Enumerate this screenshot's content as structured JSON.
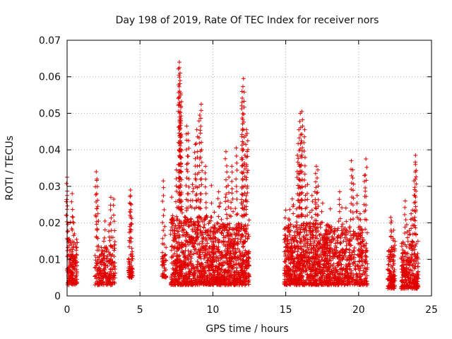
{
  "colors": {
    "points": "#e00000",
    "grid": "#a8a8a8",
    "axis": "#000000"
  },
  "chart_data": {
    "type": "scatter",
    "marker": "+",
    "title": "Day 198 of 2019, Rate Of TEC Index for receiver nors",
    "xlabel": "GPS time / hours",
    "ylabel": "ROTI / TECUs",
    "xlim": [
      0,
      25
    ],
    "ylim": [
      0,
      0.07
    ],
    "xticks": [
      0,
      5,
      10,
      15,
      20,
      25
    ],
    "xtick_labels": [
      "0",
      "5",
      "10",
      "15",
      "20",
      "25"
    ],
    "yticks": [
      0,
      0.01,
      0.02,
      0.03,
      0.04,
      0.05,
      0.06,
      0.07
    ],
    "ytick_labels": [
      "0",
      "0.01",
      "0.02",
      "0.03",
      "0.04",
      "0.05",
      "0.06",
      "0.07"
    ],
    "grid": true,
    "series": [
      {
        "name": "ROTI",
        "approximate": true,
        "clusters": [
          {
            "x0": 0.0,
            "x1": 0.7,
            "n": 160,
            "ymin": 0.003,
            "ymax": 0.016,
            "peaks": [
              [
                0.0,
                0.0325
              ],
              [
                0.0,
                0.0275
              ],
              [
                0.35,
                0.028
              ],
              [
                0.4,
                0.0215
              ],
              [
                0.5,
                0.017
              ],
              [
                0.1,
                0.0155
              ]
            ]
          },
          {
            "x0": 1.9,
            "x1": 3.3,
            "n": 220,
            "ymin": 0.003,
            "ymax": 0.014,
            "peaks": [
              [
                2.0,
                0.034
              ],
              [
                2.05,
                0.032
              ],
              [
                2.1,
                0.0245
              ],
              [
                2.6,
                0.0205
              ],
              [
                3.0,
                0.027
              ],
              [
                3.2,
                0.0265
              ],
              [
                2.9,
                0.0195
              ]
            ]
          },
          {
            "x0": 4.2,
            "x1": 4.5,
            "n": 60,
            "ymin": 0.005,
            "ymax": 0.016,
            "peaks": [
              [
                4.35,
                0.029
              ],
              [
                4.35,
                0.0275
              ],
              [
                4.4,
                0.025
              ],
              [
                4.3,
                0.019
              ]
            ]
          },
          {
            "x0": 6.5,
            "x1": 6.8,
            "n": 40,
            "ymin": 0.005,
            "ymax": 0.012,
            "peaks": [
              [
                6.6,
                0.0315
              ],
              [
                6.7,
                0.019
              ]
            ]
          },
          {
            "x0": 7.1,
            "x1": 10.0,
            "n": 750,
            "ymin": 0.003,
            "ymax": 0.022,
            "peaks": [
              [
                7.7,
                0.064
              ],
              [
                7.7,
                0.0625
              ],
              [
                7.75,
                0.061
              ],
              [
                7.8,
                0.0555
              ],
              [
                7.7,
                0.0545
              ],
              [
                7.75,
                0.0505
              ],
              [
                7.8,
                0.048
              ],
              [
                8.2,
                0.0465
              ],
              [
                8.3,
                0.0445
              ],
              [
                8.9,
                0.0455
              ],
              [
                9.2,
                0.0525
              ],
              [
                9.1,
                0.0495
              ],
              [
                9.5,
                0.0355
              ],
              [
                8.8,
                0.0415
              ],
              [
                7.5,
                0.0345
              ],
              [
                8.6,
                0.0305
              ],
              [
                9.0,
                0.0265
              ]
            ]
          },
          {
            "x0": 10.0,
            "x1": 12.5,
            "n": 650,
            "ymin": 0.003,
            "ymax": 0.02,
            "peaks": [
              [
                12.1,
                0.0595
              ],
              [
                12.0,
                0.056
              ],
              [
                12.0,
                0.053
              ],
              [
                12.3,
                0.0455
              ],
              [
                12.35,
                0.0445
              ],
              [
                11.6,
                0.0405
              ],
              [
                10.9,
                0.0395
              ],
              [
                11.3,
                0.0355
              ],
              [
                10.4,
                0.0285
              ],
              [
                11.1,
                0.0325
              ],
              [
                12.2,
                0.0385
              ]
            ]
          },
          {
            "x0": 14.9,
            "x1": 16.2,
            "n": 380,
            "ymin": 0.003,
            "ymax": 0.02,
            "peaks": [
              [
                15.0,
                0.0235
              ],
              [
                15.5,
                0.0245
              ],
              [
                15.9,
                0.0455
              ],
              [
                16.1,
                0.0505
              ],
              [
                16.0,
                0.05
              ],
              [
                16.1,
                0.042
              ],
              [
                15.8,
                0.0385
              ],
              [
                15.95,
                0.0355
              ]
            ]
          },
          {
            "x0": 16.2,
            "x1": 18.0,
            "n": 500,
            "ymin": 0.003,
            "ymax": 0.02,
            "peaks": [
              [
                16.3,
                0.0455
              ],
              [
                17.1,
                0.0355
              ],
              [
                17.2,
                0.0345
              ],
              [
                17.0,
                0.0285
              ],
              [
                16.8,
                0.0275
              ],
              [
                16.5,
                0.0305
              ]
            ]
          },
          {
            "x0": 18.0,
            "x1": 20.6,
            "n": 500,
            "ymin": 0.003,
            "ymax": 0.019,
            "peaks": [
              [
                18.7,
                0.0285
              ],
              [
                19.5,
                0.037
              ],
              [
                19.6,
                0.0345
              ],
              [
                20.5,
                0.0375
              ],
              [
                20.4,
                0.033
              ],
              [
                19.9,
                0.0275
              ],
              [
                20.1,
                0.0225
              ]
            ]
          },
          {
            "x0": 22.0,
            "x1": 22.5,
            "n": 120,
            "ymin": 0.002,
            "ymax": 0.014,
            "peaks": [
              [
                22.2,
                0.0215
              ],
              [
                22.25,
                0.0205
              ],
              [
                22.4,
                0.018
              ]
            ]
          },
          {
            "x0": 22.9,
            "x1": 24.1,
            "n": 260,
            "ymin": 0.002,
            "ymax": 0.015,
            "peaks": [
              [
                23.9,
                0.0385
              ],
              [
                23.9,
                0.036
              ],
              [
                23.8,
                0.0315
              ],
              [
                23.2,
                0.026
              ],
              [
                23.7,
                0.0235
              ],
              [
                23.6,
                0.0225
              ],
              [
                23.3,
                0.0195
              ]
            ]
          }
        ]
      }
    ]
  }
}
